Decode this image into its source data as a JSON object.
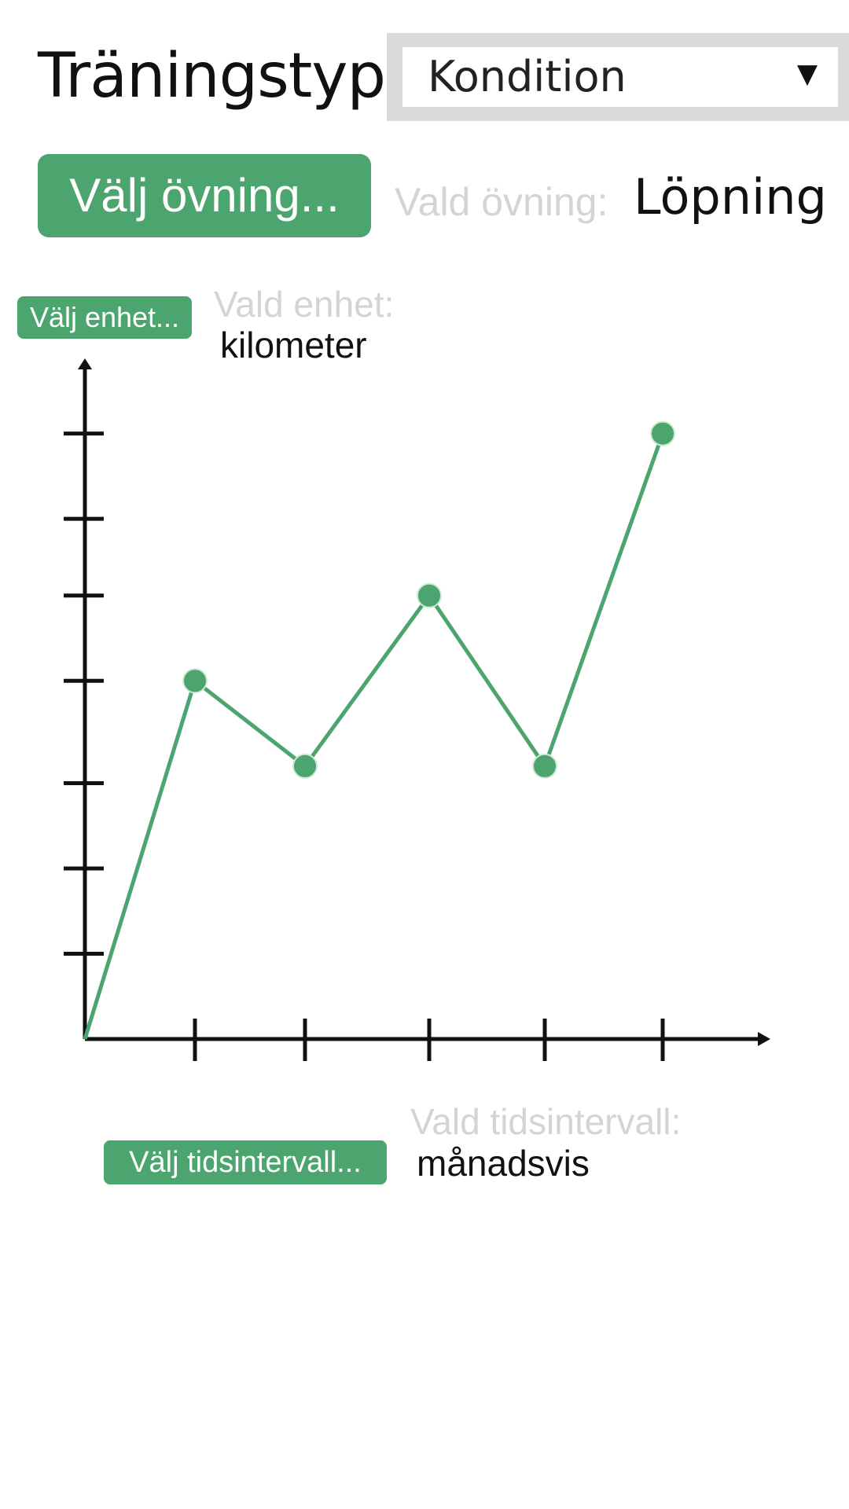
{
  "training_type": {
    "label": "Träningstyp:",
    "selected": "Kondition",
    "arrow": "▼"
  },
  "exercise": {
    "button_label": "Välj övning...",
    "caption": "Vald övning:",
    "value": "Löpning"
  },
  "unit": {
    "button_label": "Välj enhet...",
    "caption": "Vald enhet:",
    "value": "kilometer"
  },
  "interval": {
    "button_label": "Välj tidsintervall...",
    "caption": "Vald tidsintervall:",
    "value": "månadsvis"
  },
  "colors": {
    "accent": "#4ca46f",
    "axis": "#111111",
    "caption": "#d4d4d4"
  },
  "chart_data": {
    "type": "line",
    "x": [
      0,
      1,
      2,
      3,
      4,
      5
    ],
    "values": [
      0,
      4.2,
      3.2,
      5.2,
      3.2,
      7.1
    ],
    "marker_points": [
      1,
      2,
      3,
      4,
      5
    ],
    "xlim": [
      0,
      6
    ],
    "ylim": [
      0,
      8
    ],
    "x_ticks": [
      1,
      2,
      3,
      4,
      5
    ],
    "y_ticks": [
      1,
      2,
      3,
      4.2,
      5.2,
      6.1,
      7.1
    ],
    "title": "",
    "xlabel": "",
    "ylabel": "",
    "grid": false,
    "color": "#4ca46f"
  }
}
